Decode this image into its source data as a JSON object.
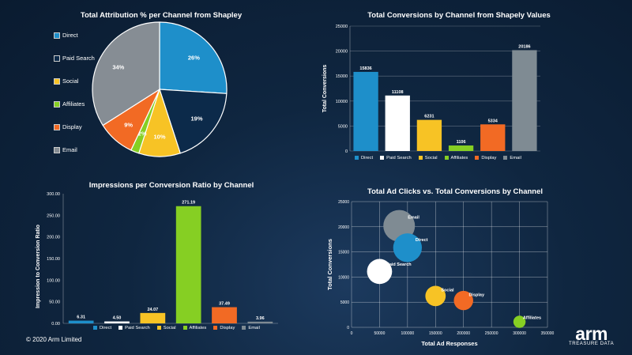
{
  "colors": {
    "Direct": "#1e8fca",
    "Paid Search": "#ffffff",
    "Social": "#f7c325",
    "Affiliates": "#86cf23",
    "Display": "#f26a24",
    "Email": "#7f8b93",
    "EmailPie": "#868d94",
    "DirectPie": "#1e8fca",
    "PaidPie": "#0c2a4a"
  },
  "footer": {
    "copyright": "© 2020 Arm Limited",
    "logo_main": "arm",
    "logo_sub": "TREASURE DATA"
  },
  "chart_data": [
    {
      "type": "pie",
      "title": "Total Attribution % per Channel from Shapley",
      "legend": [
        "Direct",
        "Paid Search",
        "Social",
        "Affiliates",
        "Display",
        "Email"
      ],
      "slices": [
        {
          "label": "Direct",
          "value": 26,
          "text": "26%"
        },
        {
          "label": "Paid Search",
          "value": 19,
          "text": "19%"
        },
        {
          "label": "Social",
          "value": 10,
          "text": "10%"
        },
        {
          "label": "Affiliates",
          "value": 2,
          "text": "2%"
        },
        {
          "label": "Display",
          "value": 9,
          "text": "9%"
        },
        {
          "label": "Email",
          "value": 34,
          "text": "34%"
        }
      ],
      "legend_position": "left"
    },
    {
      "type": "bar",
      "title": "Total Conversions by Channel from Shapely Values",
      "ylabel": "Total Conversions",
      "xlabel": "",
      "categories": [
        "Direct",
        "Paid Search",
        "Social",
        "Affiliates",
        "Display",
        "Email"
      ],
      "values": [
        15836,
        11108,
        6231,
        1106,
        5334,
        20186
      ],
      "value_labels": [
        "15836",
        "11108",
        "6231",
        "1106",
        "5334",
        "20186"
      ],
      "ylim": [
        0,
        25000
      ],
      "yticks": [
        "0",
        "5000",
        "10000",
        "15000",
        "20000",
        "25000"
      ],
      "grid": true,
      "legend_position": "bottom"
    },
    {
      "type": "bar",
      "title": "Impressions per Conversion Ratio  by Channel",
      "ylabel": "Impression to Conversion Ratio",
      "xlabel": "",
      "categories": [
        "Direct",
        "Paid Search",
        "Social",
        "Affiliates",
        "Display",
        "Email"
      ],
      "values": [
        6.31,
        4.5,
        24.07,
        271.19,
        37.49,
        3.96
      ],
      "value_labels": [
        "6.31",
        "4.50",
        "24.07",
        "271.19",
        "37.49",
        "3.96"
      ],
      "ylim": [
        0,
        300
      ],
      "yticks": [
        "0.00",
        "50.00",
        "100.00",
        "150.00",
        "200.00",
        "250.00",
        "300.00"
      ],
      "grid": false,
      "legend_position": "bottom"
    },
    {
      "type": "scatter",
      "title": "Total Ad Clicks vs. Total Conversions by Channel",
      "xlabel": "Total Ad Responses",
      "ylabel": "Total Conversions",
      "xlim": [
        0,
        350000
      ],
      "ylim": [
        0,
        25000
      ],
      "xticks": [
        "0",
        "50000",
        "100000",
        "150000",
        "200000",
        "250000",
        "300000",
        "350000"
      ],
      "yticks": [
        "0",
        "5000",
        "10000",
        "15000",
        "20000",
        "25000"
      ],
      "grid": true,
      "points": [
        {
          "label": "Email",
          "x": 85000,
          "y": 20186
        },
        {
          "label": "Direct",
          "x": 100000,
          "y": 15836
        },
        {
          "label": "Paid Search",
          "x": 50000,
          "y": 11108
        },
        {
          "label": "Social",
          "x": 150000,
          "y": 6231
        },
        {
          "label": "Display",
          "x": 200000,
          "y": 5334
        },
        {
          "label": "Affiliates",
          "x": 300000,
          "y": 1106
        }
      ]
    }
  ]
}
